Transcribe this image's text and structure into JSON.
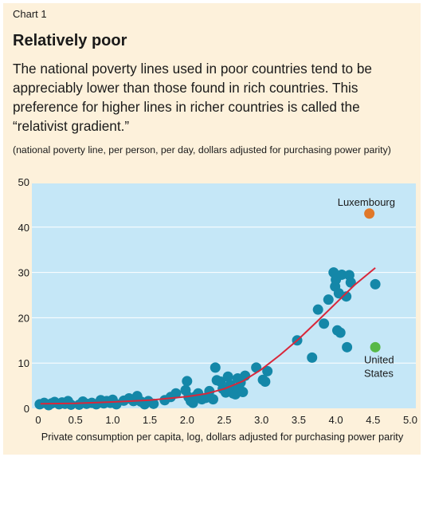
{
  "header": {
    "label": "Chart 1",
    "title": "Relatively poor",
    "subtitle": "The national poverty lines used in poor countries tend to be appreciably lower than those found in rich countries. This preference for higher lines in richer countries is called the “relativist gradient.”",
    "unit_note": "(national poverty line, per person, per day, dollars adjusted for purchasing power parity)"
  },
  "colors": {
    "panel": "#fdf1db",
    "plot_bg": "#c5e7f7",
    "points": "#1487a8",
    "fit": "#d9273a",
    "luxembourg": "#e0782a",
    "united_states": "#58b847"
  },
  "chart_data": {
    "type": "scatter",
    "xlabel": "Private consumption per capita, log, dollars adjusted for purchasing power parity",
    "ylabel": "",
    "xlim": [
      0,
      5
    ],
    "ylim": [
      0,
      50
    ],
    "x_ticks": [
      "0",
      "0.5",
      "1.0",
      "1.5",
      "2.0",
      "2.5",
      "3.0",
      "3.5",
      "4.0",
      "4.5",
      "5.0"
    ],
    "y_ticks": [
      "0",
      "10",
      "20",
      "30",
      "40",
      "50"
    ],
    "grid": "horizontal",
    "points": [
      [
        0.02,
        0.9
      ],
      [
        0.08,
        1.2
      ],
      [
        0.14,
        0.7
      ],
      [
        0.18,
        1.1
      ],
      [
        0.22,
        1.4
      ],
      [
        0.28,
        0.9
      ],
      [
        0.32,
        1.3
      ],
      [
        0.36,
        1.0
      ],
      [
        0.4,
        1.6
      ],
      [
        0.44,
        0.8
      ],
      [
        0.55,
        0.8
      ],
      [
        0.6,
        1.5
      ],
      [
        0.65,
        1.0
      ],
      [
        0.72,
        1.2
      ],
      [
        0.78,
        0.9
      ],
      [
        0.84,
        1.8
      ],
      [
        0.88,
        1.1
      ],
      [
        0.92,
        1.6
      ],
      [
        0.97,
        1.2
      ],
      [
        1.0,
        1.9
      ],
      [
        1.05,
        0.9
      ],
      [
        1.15,
        1.7
      ],
      [
        1.22,
        2.2
      ],
      [
        1.28,
        1.6
      ],
      [
        1.33,
        2.7
      ],
      [
        1.38,
        1.5
      ],
      [
        1.43,
        0.9
      ],
      [
        1.48,
        1.6
      ],
      [
        1.55,
        1.0
      ],
      [
        1.7,
        1.8
      ],
      [
        1.78,
        2.5
      ],
      [
        1.85,
        3.3
      ],
      [
        1.98,
        4.0
      ],
      [
        2.0,
        6.0
      ],
      [
        2.02,
        2.5
      ],
      [
        2.05,
        1.6
      ],
      [
        2.08,
        1.2
      ],
      [
        2.12,
        2.7
      ],
      [
        2.15,
        3.3
      ],
      [
        2.2,
        2.0
      ],
      [
        2.25,
        2.3
      ],
      [
        2.3,
        3.8
      ],
      [
        2.35,
        2.0
      ],
      [
        2.38,
        9.0
      ],
      [
        2.4,
        6.2
      ],
      [
        2.45,
        5.9
      ],
      [
        2.48,
        4.3
      ],
      [
        2.52,
        3.5
      ],
      [
        2.55,
        7.0
      ],
      [
        2.58,
        5.2
      ],
      [
        2.6,
        4.0
      ],
      [
        2.62,
        3.3
      ],
      [
        2.65,
        3.1
      ],
      [
        2.68,
        6.6
      ],
      [
        2.7,
        4.4
      ],
      [
        2.72,
        5.7
      ],
      [
        2.75,
        3.6
      ],
      [
        2.78,
        7.2
      ],
      [
        2.93,
        9.0
      ],
      [
        3.02,
        6.3
      ],
      [
        3.05,
        5.9
      ],
      [
        3.08,
        8.2
      ],
      [
        3.48,
        15.0
      ],
      [
        3.68,
        11.2
      ],
      [
        3.76,
        21.8
      ],
      [
        3.84,
        18.7
      ],
      [
        3.9,
        24.0
      ],
      [
        3.97,
        30.0
      ],
      [
        3.99,
        26.9
      ],
      [
        4.0,
        28.4
      ],
      [
        4.02,
        17.2
      ],
      [
        4.04,
        25.4
      ],
      [
        4.06,
        16.7
      ],
      [
        4.08,
        29.5
      ],
      [
        4.14,
        24.7
      ],
      [
        4.15,
        13.5
      ],
      [
        4.18,
        29.4
      ],
      [
        4.2,
        27.8
      ],
      [
        4.53,
        27.4
      ]
    ],
    "highlighted": [
      {
        "name": "Luxembourg",
        "label": "Luxembourg",
        "x": 4.45,
        "y": 43.0,
        "color": "#e0782a"
      },
      {
        "name": "United States",
        "label": "United States",
        "label_lines": [
          "United",
          "States"
        ],
        "x": 4.53,
        "y": 13.5,
        "color": "#58b847"
      }
    ],
    "fit_line": {
      "x": [
        0.03,
        0.5,
        1.0,
        1.5,
        2.0,
        2.25,
        2.5,
        2.75,
        3.0,
        3.25,
        3.5,
        3.75,
        4.0,
        4.25,
        4.53
      ],
      "y": [
        1.0,
        1.1,
        1.4,
        1.8,
        2.6,
        3.2,
        4.3,
        6.0,
        8.6,
        11.8,
        15.3,
        19.2,
        23.2,
        27.2,
        31.0
      ]
    }
  }
}
